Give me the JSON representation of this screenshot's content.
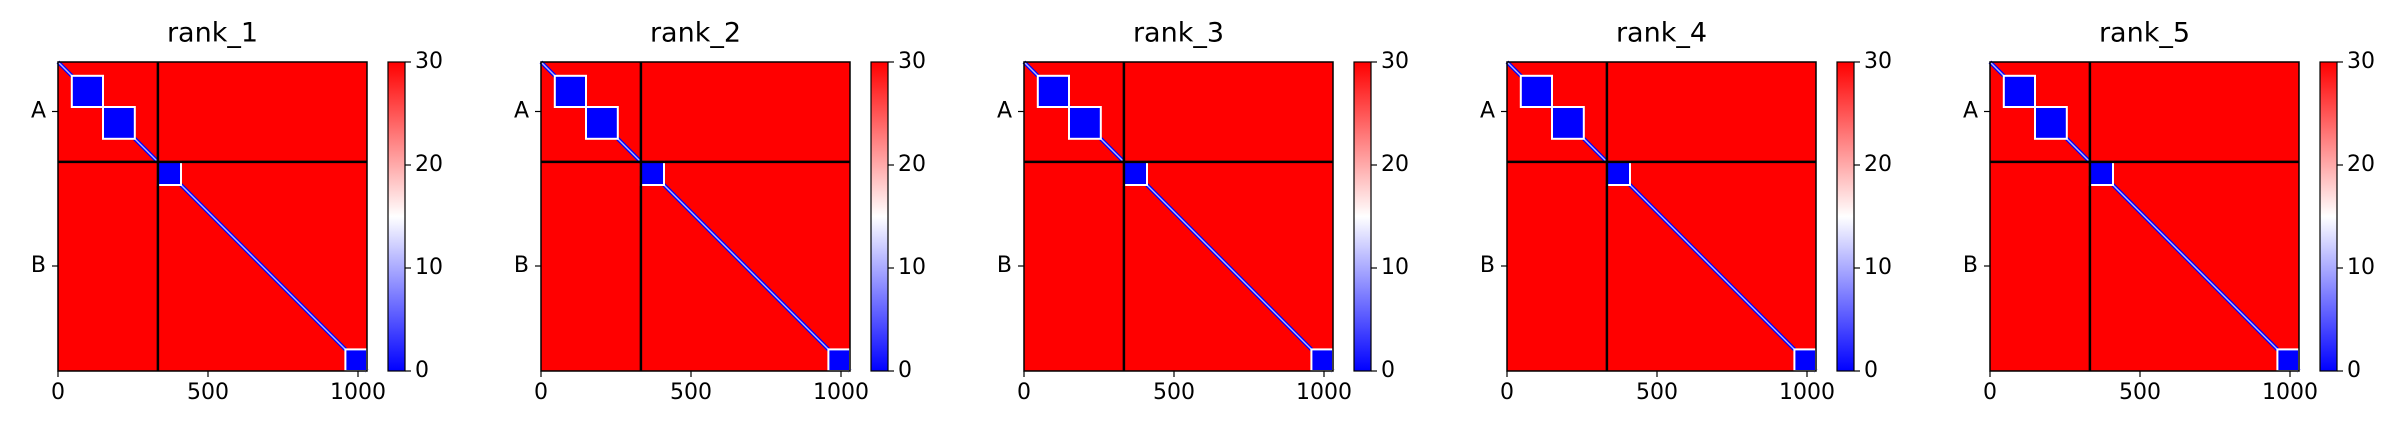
{
  "chart_data": [
    {
      "type": "heatmap",
      "title": "rank_1",
      "xlim": [
        0,
        1030
      ],
      "xticks": [
        0,
        500,
        1000
      ],
      "ylim": [
        1030,
        0
      ],
      "yticks": [
        {
          "value": 165,
          "label": "A"
        },
        {
          "value": 680,
          "label": "B"
        }
      ],
      "chain_breaks": [
        333
      ],
      "blocks": [
        [
          46,
          150
        ],
        [
          150,
          256
        ],
        [
          333,
          410
        ],
        [
          958,
          1030
        ]
      ],
      "colors": [
        "#0000ff",
        "#ffffff",
        "#ff0000"
      ],
      "clim": [
        0,
        30
      ],
      "cticks": [
        0,
        10,
        20,
        30
      ]
    },
    {
      "type": "heatmap",
      "title": "rank_2",
      "xlim": [
        0,
        1030
      ],
      "xticks": [
        0,
        500,
        1000
      ],
      "ylim": [
        1030,
        0
      ],
      "yticks": [
        {
          "value": 165,
          "label": "A"
        },
        {
          "value": 680,
          "label": "B"
        }
      ],
      "chain_breaks": [
        333
      ],
      "blocks": [
        [
          46,
          150
        ],
        [
          150,
          256
        ],
        [
          333,
          410
        ],
        [
          958,
          1030
        ]
      ],
      "colors": [
        "#0000ff",
        "#ffffff",
        "#ff0000"
      ],
      "clim": [
        0,
        30
      ],
      "cticks": [
        0,
        10,
        20,
        30
      ]
    },
    {
      "type": "heatmap",
      "title": "rank_3",
      "xlim": [
        0,
        1030
      ],
      "xticks": [
        0,
        500,
        1000
      ],
      "ylim": [
        1030,
        0
      ],
      "yticks": [
        {
          "value": 165,
          "label": "A"
        },
        {
          "value": 680,
          "label": "B"
        }
      ],
      "chain_breaks": [
        333
      ],
      "blocks": [
        [
          46,
          150
        ],
        [
          150,
          256
        ],
        [
          333,
          410
        ],
        [
          958,
          1030
        ]
      ],
      "colors": [
        "#0000ff",
        "#ffffff",
        "#ff0000"
      ],
      "clim": [
        0,
        30
      ],
      "cticks": [
        0,
        10,
        20,
        30
      ]
    },
    {
      "type": "heatmap",
      "title": "rank_4",
      "xlim": [
        0,
        1030
      ],
      "xticks": [
        0,
        500,
        1000
      ],
      "ylim": [
        1030,
        0
      ],
      "yticks": [
        {
          "value": 165,
          "label": "A"
        },
        {
          "value": 680,
          "label": "B"
        }
      ],
      "chain_breaks": [
        333
      ],
      "blocks": [
        [
          46,
          150
        ],
        [
          150,
          256
        ],
        [
          333,
          410
        ],
        [
          958,
          1030
        ]
      ],
      "colors": [
        "#0000ff",
        "#ffffff",
        "#ff0000"
      ],
      "clim": [
        0,
        30
      ],
      "cticks": [
        0,
        10,
        20,
        30
      ]
    },
    {
      "type": "heatmap",
      "title": "rank_5",
      "xlim": [
        0,
        1030
      ],
      "xticks": [
        0,
        500,
        1000
      ],
      "ylim": [
        1030,
        0
      ],
      "yticks": [
        {
          "value": 165,
          "label": "A"
        },
        {
          "value": 680,
          "label": "B"
        }
      ],
      "chain_breaks": [
        333
      ],
      "blocks": [
        [
          46,
          150
        ],
        [
          150,
          256
        ],
        [
          333,
          410
        ],
        [
          958,
          1030
        ]
      ],
      "colors": [
        "#0000ff",
        "#ffffff",
        "#ff0000"
      ],
      "clim": [
        0,
        30
      ],
      "cticks": [
        0,
        10,
        20,
        30
      ]
    }
  ]
}
